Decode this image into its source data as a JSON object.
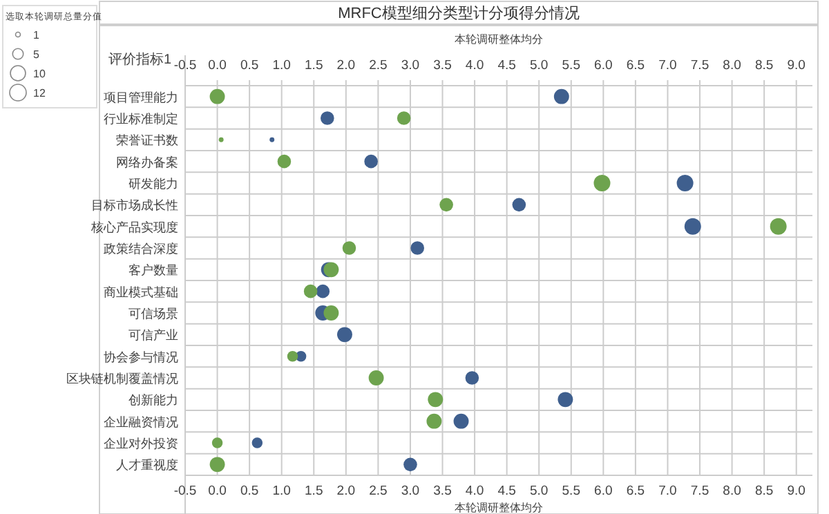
{
  "chart_data": {
    "type": "bubble",
    "orientation": "horizontal",
    "title": "MRFC模型细分类型计分项得分情况",
    "xlabel": "本轮调研整体均分",
    "x2label": "本轮调研整体均分",
    "ylabel": "评价指标1",
    "legend_title": "选取本轮调研总量分值",
    "size_legend": [
      1,
      5,
      10,
      12
    ],
    "categories": [
      "项目管理能力",
      "行业标准制定",
      "荣誉证书数",
      "网络办备案",
      "研发能力",
      "目标市场成长性",
      "核心产品实现度",
      "政策结合深度",
      "客户数量",
      "商业模式基础",
      "可信场景",
      "可信产业",
      "协会参与情况",
      "区块链机制覆盖情况",
      "创新能力",
      "企业融资情况",
      "企业对外投资",
      "人才重视度"
    ],
    "series": [
      {
        "color": "#3f5f8e",
        "values": [
          5.35,
          1.71,
          0.85,
          2.39,
          7.27,
          4.69,
          7.39,
          3.11,
          1.73,
          1.64,
          1.64,
          1.98,
          1.3,
          3.96,
          5.41,
          3.79,
          0.62,
          3.0
        ],
        "sizes": [
          10,
          8,
          1,
          8,
          12,
          8,
          12,
          8,
          10,
          8,
          10,
          10,
          5,
          8,
          10,
          10,
          5,
          8
        ]
      },
      {
        "color": "#6ea34e",
        "values": [
          0.0,
          2.9,
          0.06,
          1.04,
          5.98,
          3.56,
          8.72,
          2.05,
          1.77,
          1.45,
          1.77,
          null,
          1.17,
          2.47,
          3.39,
          3.37,
          0.0,
          0.0
        ],
        "sizes": [
          10,
          8,
          1,
          8,
          12,
          8,
          12,
          8,
          10,
          8,
          10,
          null,
          5,
          10,
          10,
          10,
          5,
          10
        ]
      }
    ],
    "xlim": [
      -0.5,
      9.25
    ],
    "x2lim": [
      -0.5,
      9.25
    ],
    "xticks": [
      -0.5,
      {
        "value": 0,
        "label": "0.0"
      },
      0.5,
      {
        "value": 1,
        "label": "1.0"
      },
      1.5,
      {
        "value": 2,
        "label": "2.0"
      },
      2.5,
      {
        "value": 3,
        "label": "3.0"
      },
      3.5,
      {
        "value": 4,
        "label": "4.0"
      },
      4.5,
      {
        "value": 5,
        "label": "5.0"
      },
      5.5,
      {
        "value": 6,
        "label": "6.0"
      },
      6.5,
      {
        "value": 7,
        "label": "7.0"
      },
      7.5,
      {
        "value": 8,
        "label": "8.0"
      },
      8.5,
      {
        "value": 9,
        "label": "9.0"
      }
    ],
    "x2ticks": [
      -0.5,
      {
        "value": 0,
        "label": "0.0"
      },
      0.5,
      {
        "value": 1,
        "label": "1.0"
      },
      1.5,
      {
        "value": 2,
        "label": "2.0"
      },
      2.5,
      {
        "value": 3,
        "label": "3.0"
      },
      3.5,
      {
        "value": 4,
        "label": "4.0"
      },
      4.5,
      {
        "value": 5,
        "label": "5.0"
      },
      5.5,
      {
        "value": 6,
        "label": "6.0"
      },
      6.5,
      {
        "value": 7,
        "label": "7.0"
      },
      7.5,
      {
        "value": 8,
        "label": "8.0"
      },
      8.5,
      {
        "value": 9,
        "label": "9.0"
      }
    ],
    "grid": true
  }
}
